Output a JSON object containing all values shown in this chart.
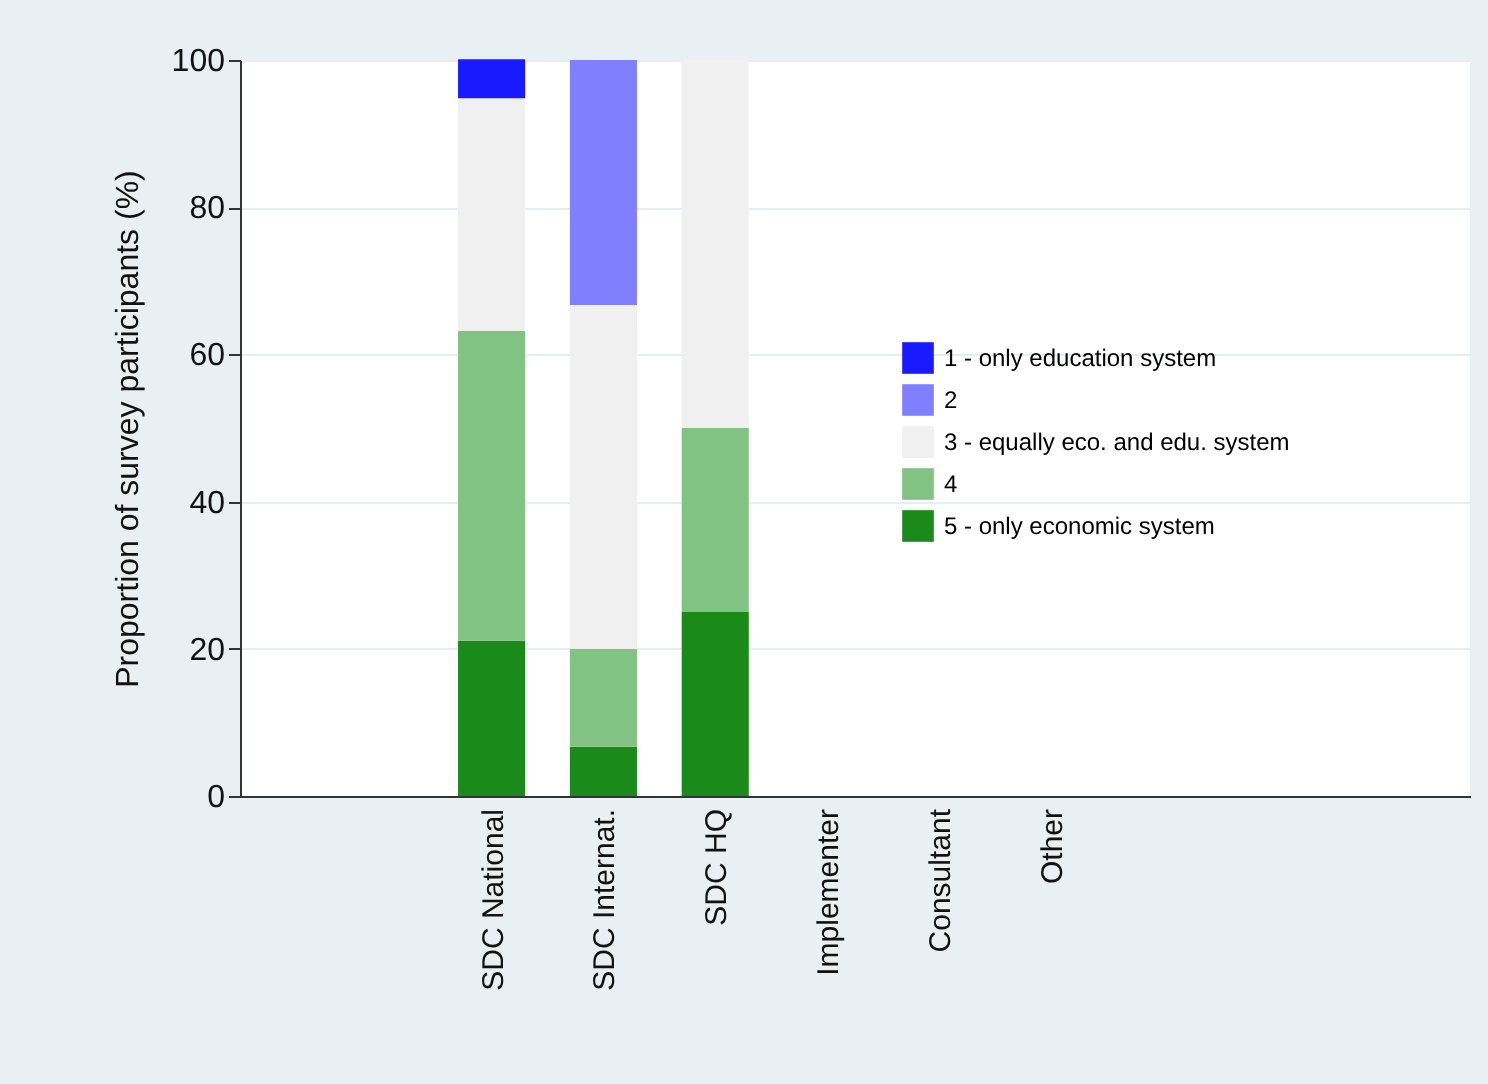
{
  "chart_data": {
    "type": "bar",
    "stacked": true,
    "ylabel": "Proportion of survey participants (%)",
    "categories": [
      "SDC National",
      "SDC Internat.",
      "SDC HQ",
      "Implementer",
      "Consultant",
      "Other"
    ],
    "series": [
      {
        "name": "5 - only economic system",
        "color": "#1a8a1a",
        "values": [
          21.1,
          6.7,
          25,
          0,
          0,
          0
        ]
      },
      {
        "name": "4",
        "color": "#82c282",
        "values": [
          42.1,
          13.3,
          25,
          0,
          0,
          0
        ]
      },
      {
        "name": "3 - equally eco. and edu. system",
        "color": "#f0f0f0",
        "values": [
          31.6,
          46.7,
          50,
          0,
          0,
          0
        ]
      },
      {
        "name": "2",
        "color": "#8080ff",
        "values": [
          0,
          33.3,
          0,
          0,
          0,
          0
        ]
      },
      {
        "name": "1 - only education system",
        "color": "#1a1aff",
        "values": [
          5.3,
          0,
          0,
          0,
          0,
          0
        ]
      }
    ],
    "ylim": [
      0,
      100
    ],
    "yticks": [
      0,
      20,
      40,
      60,
      80,
      100
    ],
    "grid": "y",
    "legend": "right"
  }
}
